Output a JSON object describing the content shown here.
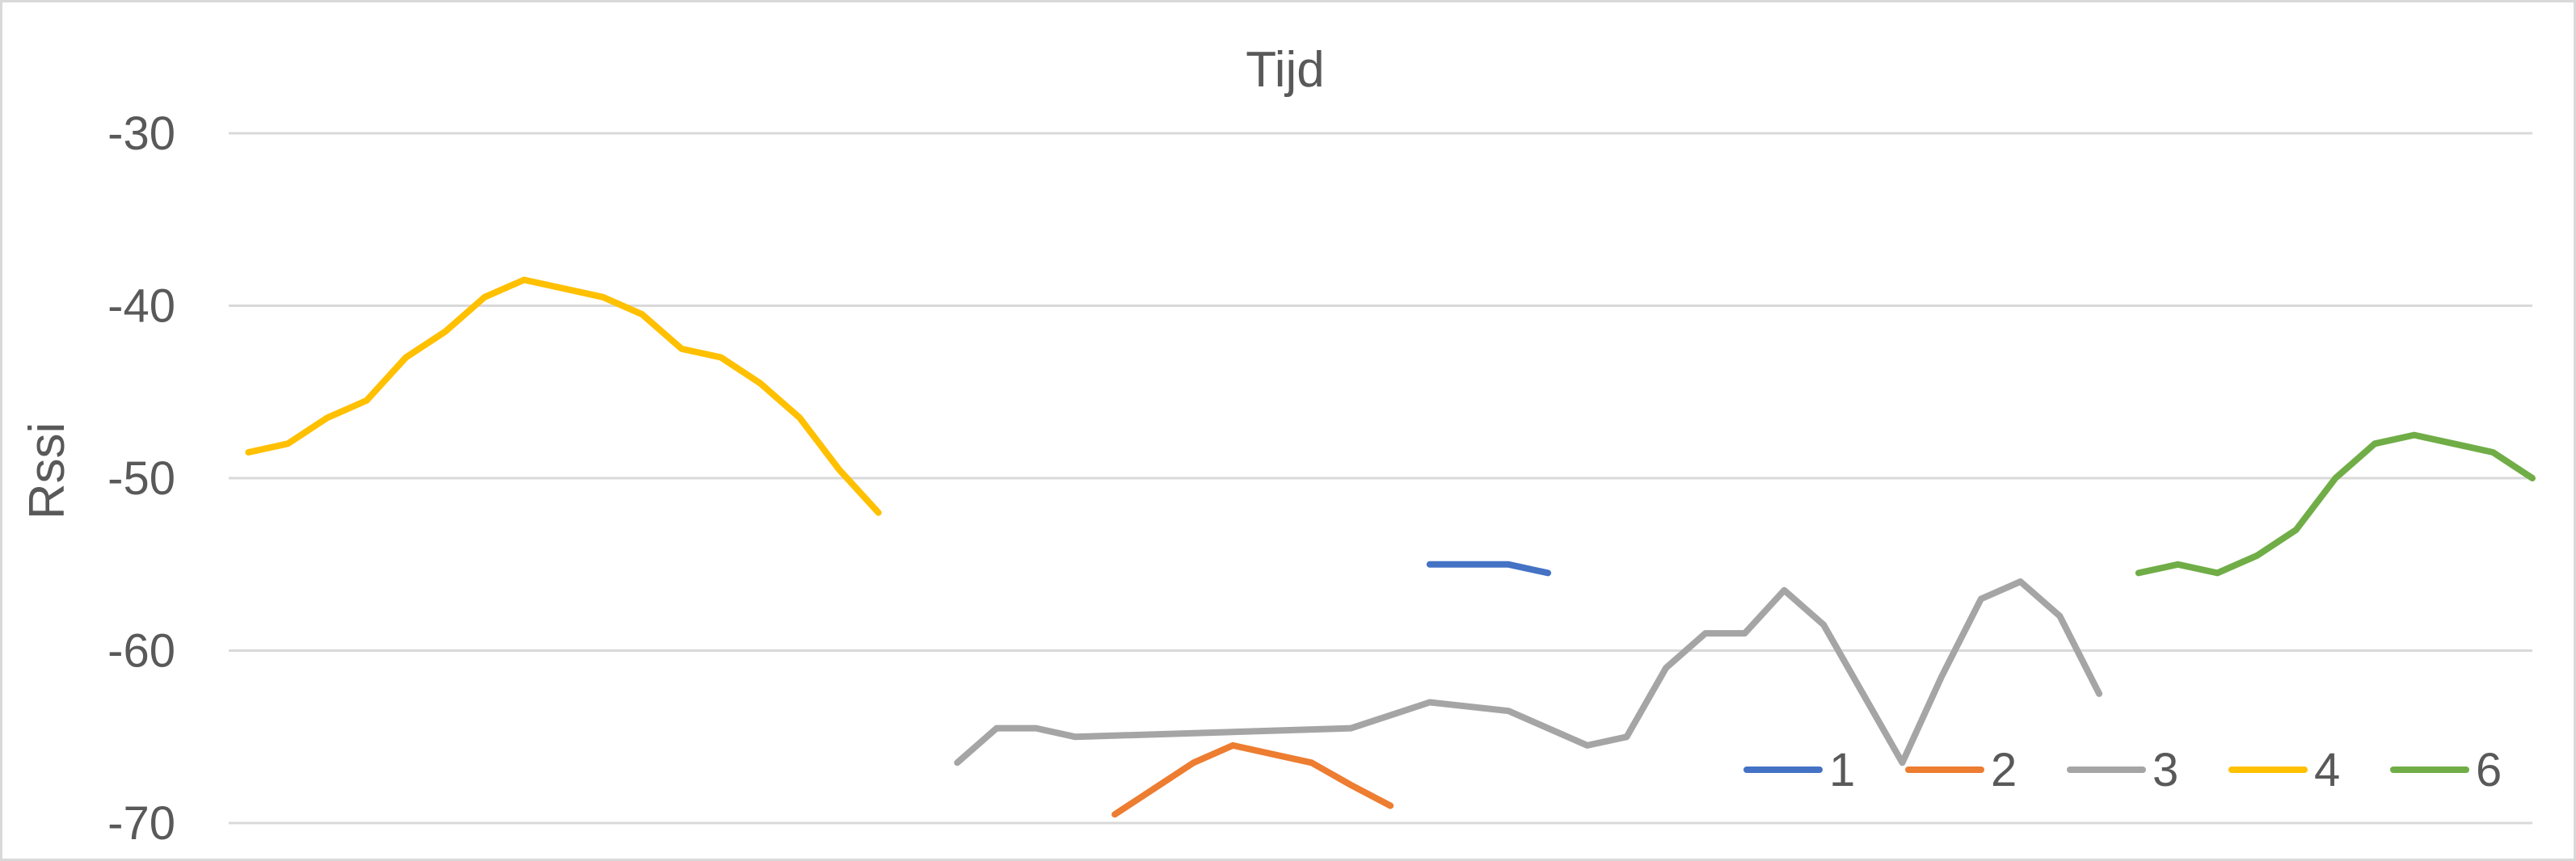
{
  "chart_data": {
    "type": "line",
    "title": "Tijd",
    "xlabel": "",
    "ylabel": "Rssi",
    "ylim": [
      -70,
      -30
    ],
    "yticks": [
      -30,
      -40,
      -50,
      -60,
      -70
    ],
    "grid": true,
    "legend_position": "bottom-right",
    "x": [
      1,
      2,
      3,
      4,
      5,
      6,
      7,
      8,
      9,
      10,
      11,
      12,
      13,
      14,
      15,
      16,
      17,
      18,
      19,
      20,
      21,
      22,
      23,
      24,
      25,
      26,
      27,
      28,
      29,
      30,
      31,
      32,
      33,
      34,
      35,
      36,
      37,
      38,
      39,
      40,
      41,
      42,
      43,
      44,
      45,
      46,
      47,
      48,
      49,
      50,
      51,
      52,
      53,
      54,
      55,
      56,
      57,
      58
    ],
    "series": [
      {
        "name": "1",
        "color": "#4472C4",
        "points": [
          [
            31,
            -55
          ],
          [
            32,
            -55
          ],
          [
            33,
            -55
          ],
          [
            34,
            -55.5
          ]
        ]
      },
      {
        "name": "2",
        "color": "#ED7D31",
        "points": [
          [
            23,
            -69.5
          ],
          [
            24,
            -68
          ],
          [
            25,
            -66.5
          ],
          [
            26,
            -65.5
          ],
          [
            27,
            -66
          ],
          [
            28,
            -66.5
          ],
          [
            29,
            -67.8
          ],
          [
            30,
            -69
          ]
        ]
      },
      {
        "name": "3",
        "color": "#A5A5A5",
        "points": [
          [
            19,
            -66.5
          ],
          [
            20,
            -64.5
          ],
          [
            21,
            -64.5
          ],
          [
            22,
            -65
          ],
          [
            29,
            -64.5
          ],
          [
            31,
            -63
          ],
          [
            33,
            -63.5
          ],
          [
            35,
            -65.5
          ],
          [
            36,
            -65
          ],
          [
            37,
            -61
          ],
          [
            38,
            -59
          ],
          [
            39,
            -59
          ],
          [
            40,
            -56.5
          ],
          [
            41,
            -58.5
          ],
          [
            42,
            -62.5
          ],
          [
            43,
            -66.5
          ],
          [
            44,
            -61.5
          ],
          [
            45,
            -57
          ],
          [
            46,
            -56
          ],
          [
            47,
            -58
          ],
          [
            48,
            -62.5
          ]
        ]
      },
      {
        "name": "4",
        "color": "#FFC000",
        "points": [
          [
            1,
            -48.5
          ],
          [
            2,
            -48
          ],
          [
            3,
            -46.5
          ],
          [
            4,
            -45.5
          ],
          [
            5,
            -43
          ],
          [
            6,
            -41.5
          ],
          [
            7,
            -39.5
          ],
          [
            8,
            -38.5
          ],
          [
            9,
            -39
          ],
          [
            10,
            -39.5
          ],
          [
            11,
            -40.5
          ],
          [
            12,
            -42.5
          ],
          [
            13,
            -43
          ],
          [
            14,
            -44.5
          ],
          [
            15,
            -46.5
          ],
          [
            16,
            -49.5
          ],
          [
            17,
            -52
          ]
        ]
      },
      {
        "name": "6",
        "color": "#70AD47",
        "points": [
          [
            49,
            -55.5
          ],
          [
            50,
            -55
          ],
          [
            51,
            -55.5
          ],
          [
            52,
            -54.5
          ],
          [
            53,
            -53
          ],
          [
            54,
            -50
          ],
          [
            55,
            -48
          ],
          [
            56,
            -47.5
          ],
          [
            57,
            -48
          ],
          [
            58,
            -48.5
          ],
          [
            59,
            -50
          ]
        ]
      }
    ]
  }
}
